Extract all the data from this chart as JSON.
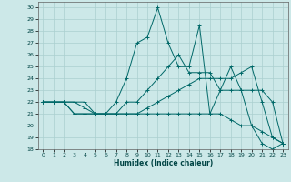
{
  "xlabel": "Humidex (Indice chaleur)",
  "ylabel": "",
  "xlim": [
    -0.5,
    23.5
  ],
  "ylim": [
    18,
    30.5
  ],
  "yticks": [
    18,
    19,
    20,
    21,
    22,
    23,
    24,
    25,
    26,
    27,
    28,
    29,
    30
  ],
  "xticks": [
    0,
    1,
    2,
    3,
    4,
    5,
    6,
    7,
    8,
    9,
    10,
    11,
    12,
    13,
    14,
    15,
    16,
    17,
    18,
    19,
    20,
    21,
    22,
    23
  ],
  "bg_color": "#cce8e8",
  "grid_color": "#aacfcf",
  "line_color": "#006868",
  "lines": [
    {
      "x": [
        0,
        1,
        2,
        3,
        4,
        5,
        6,
        7,
        8,
        9,
        10,
        11,
        12,
        13,
        14,
        15,
        16,
        17,
        18,
        19,
        20,
        21,
        22,
        23
      ],
      "y": [
        22,
        22,
        22,
        21,
        21,
        21,
        21,
        22,
        24,
        27,
        27.5,
        30,
        27,
        25,
        25,
        28.5,
        21,
        23,
        25,
        23,
        20,
        18.5,
        18,
        18.5
      ]
    },
    {
      "x": [
        0,
        1,
        2,
        3,
        4,
        5,
        6,
        7,
        8,
        9,
        10,
        11,
        12,
        13,
        14,
        15,
        16,
        17,
        18,
        19,
        20,
        21,
        22,
        23
      ],
      "y": [
        22,
        22,
        22,
        22,
        22,
        21,
        21,
        21,
        22,
        22,
        23,
        24,
        25,
        26,
        24.5,
        24.5,
        24.5,
        23,
        23,
        23,
        23,
        23,
        22,
        18.5
      ]
    },
    {
      "x": [
        0,
        1,
        2,
        3,
        4,
        5,
        6,
        7,
        8,
        9,
        10,
        11,
        12,
        13,
        14,
        15,
        16,
        17,
        18,
        19,
        20,
        21,
        22,
        23
      ],
      "y": [
        22,
        22,
        22,
        22,
        21.5,
        21,
        21,
        21,
        21,
        21,
        21.5,
        22,
        22.5,
        23,
        23.5,
        24,
        24,
        24,
        24,
        24.5,
        25,
        22,
        19,
        18.5
      ]
    },
    {
      "x": [
        0,
        1,
        2,
        3,
        4,
        5,
        6,
        7,
        8,
        9,
        10,
        11,
        12,
        13,
        14,
        15,
        16,
        17,
        18,
        19,
        20,
        21,
        22,
        23
      ],
      "y": [
        22,
        22,
        22,
        21,
        21,
        21,
        21,
        21,
        21,
        21,
        21,
        21,
        21,
        21,
        21,
        21,
        21,
        21,
        20.5,
        20,
        20,
        19.5,
        19,
        18.5
      ]
    }
  ]
}
